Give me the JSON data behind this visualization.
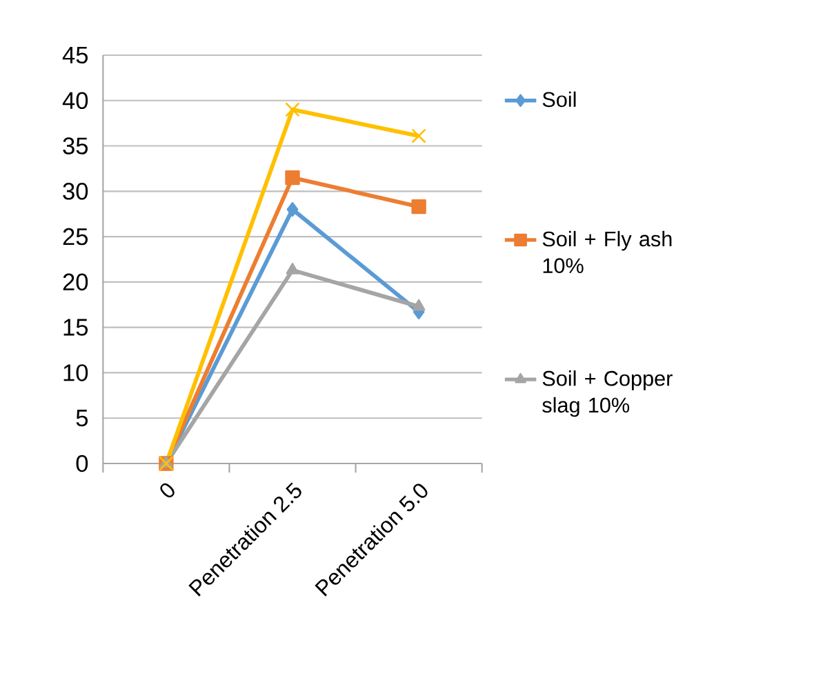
{
  "chart_data": {
    "type": "line",
    "categories": [
      "0",
      "Penetration 2.5",
      "Penetration 5.0"
    ],
    "series": [
      {
        "name": "Soil",
        "color": "#5b9bd5",
        "marker": "diamond",
        "values": [
          0,
          28.0,
          16.7
        ]
      },
      {
        "name": "Soil + Fly ash 10%",
        "color": "#ed7d31",
        "marker": "square",
        "values": [
          0,
          31.5,
          28.3
        ]
      },
      {
        "name": "Soil + Copper slag 10%",
        "color": "#a5a5a5",
        "marker": "triangle",
        "values": [
          0,
          21.3,
          17.3
        ]
      },
      {
        "color": "#ffc000",
        "marker": "cross",
        "values": [
          0,
          39.0,
          36.1
        ]
      }
    ],
    "ylim": [
      0,
      45
    ],
    "yticks": [
      0,
      5,
      10,
      15,
      20,
      25,
      30,
      35,
      40,
      45
    ],
    "grid": "y",
    "legend": "right"
  }
}
